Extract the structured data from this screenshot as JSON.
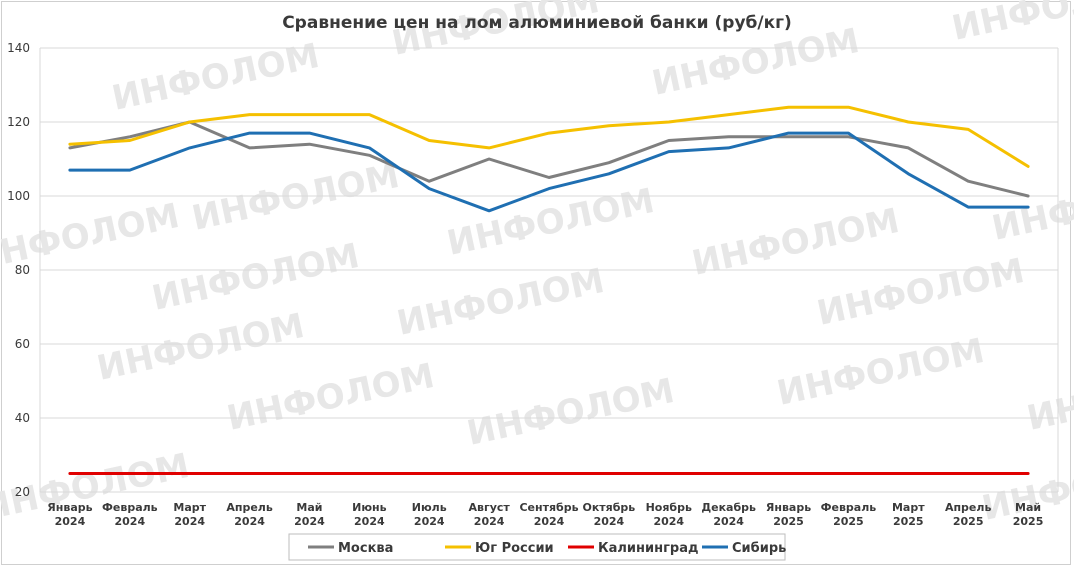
{
  "watermark": "ИНФОЛОМ",
  "chart_data": {
    "type": "line",
    "title": "Сравнение цен на лом алюминиевой банки (руб/кг)",
    "xlabel": "",
    "ylabel": "",
    "ylim": [
      20,
      140
    ],
    "yticks": [
      20,
      40,
      60,
      80,
      100,
      120,
      140
    ],
    "grid": true,
    "legend_position": "bottom",
    "categories": [
      [
        "Январь",
        "2024"
      ],
      [
        "Февраль",
        "2024"
      ],
      [
        "Март",
        "2024"
      ],
      [
        "Апрель",
        "2024"
      ],
      [
        "Май",
        "2024"
      ],
      [
        "Июнь",
        "2024"
      ],
      [
        "Июль",
        "2024"
      ],
      [
        "Август",
        "2024"
      ],
      [
        "Сентябрь",
        "2024"
      ],
      [
        "Октябрь",
        "2024"
      ],
      [
        "Ноябрь",
        "2024"
      ],
      [
        "Декабрь",
        "2024"
      ],
      [
        "Январь",
        "2025"
      ],
      [
        "Февраль",
        "2025"
      ],
      [
        "Март",
        "2025"
      ],
      [
        "Апрель",
        "2025"
      ],
      [
        "Май",
        "2025"
      ]
    ],
    "series": [
      {
        "name": "Москва",
        "color": "#7f7f7f",
        "values": [
          113,
          116,
          120,
          113,
          114,
          111,
          104,
          110,
          105,
          109,
          115,
          116,
          116,
          116,
          113,
          104,
          100
        ]
      },
      {
        "name": "Юг России",
        "color": "#f5c000",
        "values": [
          114,
          115,
          120,
          122,
          122,
          122,
          115,
          113,
          117,
          119,
          120,
          122,
          124,
          124,
          120,
          118,
          108
        ]
      },
      {
        "name": "Калининград",
        "color": "#e00000",
        "values": [
          25,
          25,
          25,
          25,
          25,
          25,
          25,
          25,
          25,
          25,
          25,
          25,
          25,
          25,
          25,
          25,
          25
        ]
      },
      {
        "name": "Сибирь",
        "color": "#1f6fb2",
        "values": [
          107,
          107,
          113,
          117,
          117,
          113,
          102,
          96,
          102,
          106,
          112,
          113,
          117,
          117,
          106,
          97,
          97
        ]
      }
    ]
  }
}
